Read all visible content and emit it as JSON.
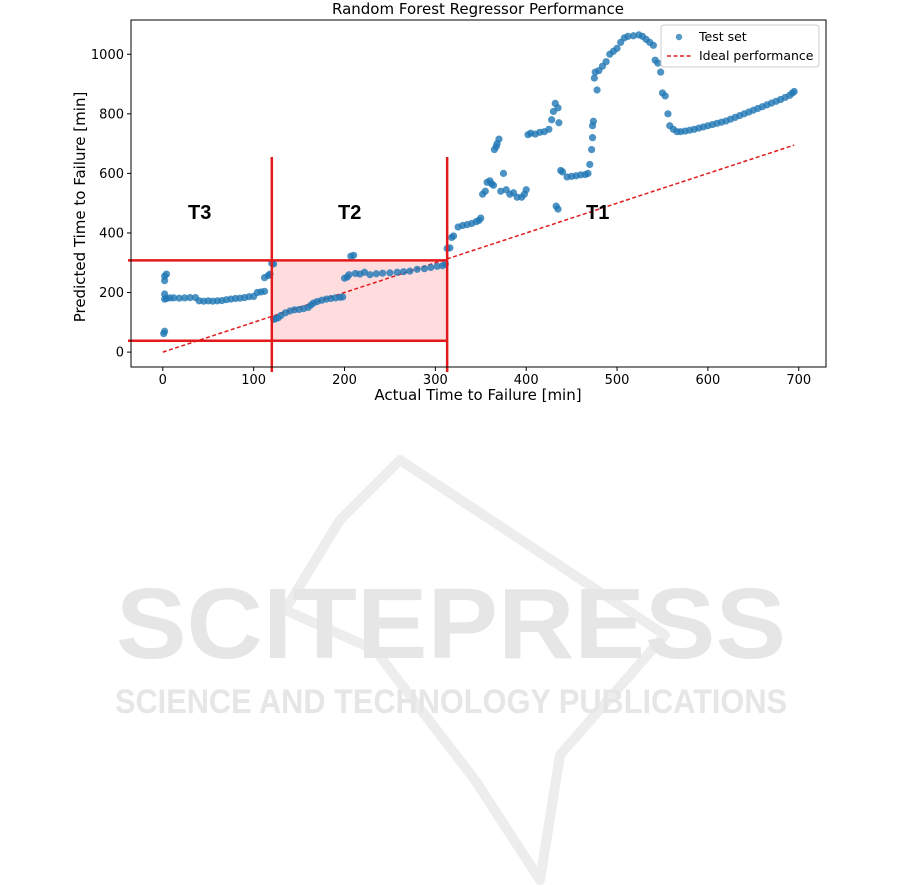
{
  "chart_data": {
    "type": "scatter",
    "title": "Random Forest Regressor Performance",
    "xlabel": "Actual Time to Failure [min]",
    "ylabel": "Predicted Time to Failure [min]",
    "xlim": [
      -35,
      730
    ],
    "ylim": [
      -50,
      1115
    ],
    "xticks": [
      0,
      100,
      200,
      300,
      400,
      500,
      600,
      700
    ],
    "yticks": [
      0,
      200,
      400,
      600,
      800,
      1000
    ],
    "grid": false,
    "legend_position": "top-right",
    "colors": {
      "points": "#1f77b4",
      "ideal": "#e31a1c",
      "regions": "#e31a1c",
      "shade": "#ffd9dc"
    },
    "series": [
      {
        "name": "Test set",
        "type": "scatter",
        "points": [
          [
            1,
            62
          ],
          [
            2,
            70
          ],
          [
            2,
            255
          ],
          [
            2,
            240
          ],
          [
            2,
            195
          ],
          [
            2,
            178
          ],
          [
            4,
            262
          ],
          [
            4,
            180
          ],
          [
            8,
            182
          ],
          [
            12,
            182
          ],
          [
            18,
            181
          ],
          [
            24,
            182
          ],
          [
            30,
            183
          ],
          [
            36,
            183
          ],
          [
            40,
            172
          ],
          [
            45,
            171
          ],
          [
            50,
            172
          ],
          [
            55,
            171
          ],
          [
            60,
            172
          ],
          [
            65,
            173
          ],
          [
            70,
            176
          ],
          [
            75,
            178
          ],
          [
            80,
            180
          ],
          [
            85,
            181
          ],
          [
            90,
            183
          ],
          [
            95,
            186
          ],
          [
            100,
            187
          ],
          [
            104,
            200
          ],
          [
            108,
            202
          ],
          [
            112,
            204
          ],
          [
            112,
            250
          ],
          [
            116,
            257
          ],
          [
            118,
            262
          ],
          [
            120,
            298
          ],
          [
            122,
            296
          ],
          [
            122,
            110
          ],
          [
            124,
            112
          ],
          [
            127,
            115
          ],
          [
            130,
            123
          ],
          [
            135,
            132
          ],
          [
            140,
            138
          ],
          [
            145,
            142
          ],
          [
            150,
            143
          ],
          [
            155,
            146
          ],
          [
            160,
            150
          ],
          [
            163,
            158
          ],
          [
            166,
            165
          ],
          [
            170,
            170
          ],
          [
            175,
            174
          ],
          [
            180,
            178
          ],
          [
            185,
            180
          ],
          [
            190,
            182
          ],
          [
            195,
            184
          ],
          [
            198,
            185
          ],
          [
            200,
            248
          ],
          [
            203,
            252
          ],
          [
            205,
            260
          ],
          [
            207,
            322
          ],
          [
            210,
            325
          ],
          [
            212,
            264
          ],
          [
            217,
            262
          ],
          [
            222,
            268
          ],
          [
            228,
            260
          ],
          [
            235,
            263
          ],
          [
            242,
            265
          ],
          [
            250,
            266
          ],
          [
            258,
            268
          ],
          [
            265,
            270
          ],
          [
            272,
            272
          ],
          [
            280,
            278
          ],
          [
            288,
            280
          ],
          [
            295,
            284
          ],
          [
            302,
            288
          ],
          [
            308,
            290
          ],
          [
            311,
            296
          ],
          [
            313,
            348
          ],
          [
            316,
            350
          ],
          [
            318,
            385
          ],
          [
            320,
            390
          ],
          [
            325,
            420
          ],
          [
            330,
            425
          ],
          [
            335,
            428
          ],
          [
            340,
            432
          ],
          [
            345,
            438
          ],
          [
            348,
            442
          ],
          [
            350,
            450
          ],
          [
            352,
            530
          ],
          [
            355,
            540
          ],
          [
            357,
            570
          ],
          [
            360,
            575
          ],
          [
            362,
            565
          ],
          [
            364,
            560
          ],
          [
            365,
            680
          ],
          [
            367,
            690
          ],
          [
            368,
            700
          ],
          [
            370,
            715
          ],
          [
            372,
            540
          ],
          [
            375,
            600
          ],
          [
            378,
            545
          ],
          [
            382,
            530
          ],
          [
            386,
            535
          ],
          [
            390,
            520
          ],
          [
            395,
            520
          ],
          [
            398,
            530
          ],
          [
            400,
            545
          ],
          [
            402,
            730
          ],
          [
            405,
            735
          ],
          [
            410,
            732
          ],
          [
            415,
            738
          ],
          [
            420,
            740
          ],
          [
            425,
            748
          ],
          [
            428,
            780
          ],
          [
            430,
            808
          ],
          [
            432,
            835
          ],
          [
            435,
            820
          ],
          [
            436,
            770
          ],
          [
            433,
            490
          ],
          [
            435,
            480
          ],
          [
            438,
            610
          ],
          [
            440,
            605
          ],
          [
            445,
            588
          ],
          [
            450,
            590
          ],
          [
            455,
            592
          ],
          [
            460,
            595
          ],
          [
            465,
            596
          ],
          [
            468,
            600
          ],
          [
            470,
            630
          ],
          [
            472,
            680
          ],
          [
            473,
            720
          ],
          [
            473,
            760
          ],
          [
            474,
            775
          ],
          [
            475,
            920
          ],
          [
            476,
            940
          ],
          [
            478,
            880
          ],
          [
            480,
            945
          ],
          [
            484,
            960
          ],
          [
            488,
            975
          ],
          [
            492,
            1000
          ],
          [
            496,
            1010
          ],
          [
            500,
            1020
          ],
          [
            504,
            1040
          ],
          [
            508,
            1055
          ],
          [
            512,
            1060
          ],
          [
            518,
            1062
          ],
          [
            524,
            1065
          ],
          [
            528,
            1060
          ],
          [
            532,
            1050
          ],
          [
            536,
            1040
          ],
          [
            540,
            1030
          ],
          [
            542,
            980
          ],
          [
            545,
            970
          ],
          [
            548,
            940
          ],
          [
            550,
            870
          ],
          [
            553,
            860
          ],
          [
            556,
            800
          ],
          [
            558,
            760
          ],
          [
            562,
            748
          ],
          [
            566,
            740
          ],
          [
            570,
            740
          ],
          [
            575,
            742
          ],
          [
            580,
            745
          ],
          [
            585,
            748
          ],
          [
            590,
            752
          ],
          [
            595,
            756
          ],
          [
            600,
            760
          ],
          [
            605,
            764
          ],
          [
            610,
            768
          ],
          [
            615,
            772
          ],
          [
            620,
            776
          ],
          [
            625,
            782
          ],
          [
            630,
            788
          ],
          [
            635,
            794
          ],
          [
            640,
            800
          ],
          [
            645,
            806
          ],
          [
            650,
            812
          ],
          [
            655,
            818
          ],
          [
            660,
            824
          ],
          [
            665,
            830
          ],
          [
            670,
            836
          ],
          [
            675,
            842
          ],
          [
            680,
            848
          ],
          [
            685,
            855
          ],
          [
            690,
            862
          ],
          [
            693,
            870
          ],
          [
            695,
            875
          ]
        ]
      },
      {
        "name": "Ideal performance",
        "type": "line",
        "style": "dashed",
        "points": [
          [
            0,
            0
          ],
          [
            695,
            695
          ]
        ]
      }
    ],
    "regions": [
      {
        "label": "T3",
        "x": 42,
        "y": 470
      },
      {
        "label": "T2",
        "x": 208,
        "y": 470
      },
      {
        "label": "T1",
        "x": 480,
        "y": 470
      }
    ],
    "reference_lines": {
      "vertical_x": [
        120,
        313
      ],
      "vertical_ymax": 655,
      "horizontal_y": [
        38,
        308
      ],
      "shaded_box": {
        "x": [
          120,
          313
        ],
        "y": [
          38,
          308
        ]
      }
    },
    "watermark": {
      "main": "SCITEPRESS",
      "sub": "SCIENCE AND TECHNOLOGY PUBLICATIONS"
    }
  }
}
